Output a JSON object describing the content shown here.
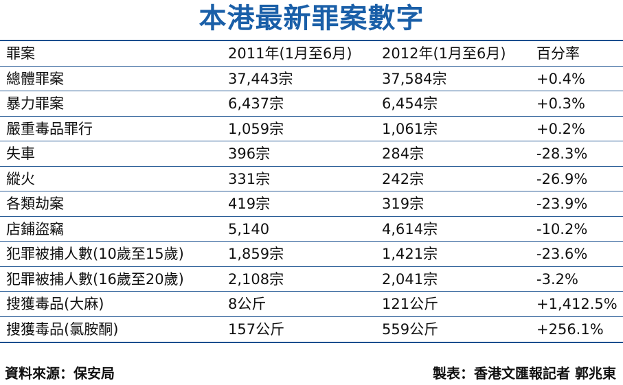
{
  "title": "本港最新罪案數字",
  "header": {
    "col1": "罪案",
    "col2": "2011年(1月至6月)",
    "col3": "2012年(1月至6月)",
    "col4": "百分率"
  },
  "rows": [
    {
      "crime": "總體罪案",
      "y2011": "37,443宗",
      "y2012": "37,584宗",
      "pct": "+0.4%"
    },
    {
      "crime": "暴力罪案",
      "y2011": "6,437宗",
      "y2012": "6,454宗",
      "pct": "+0.3%"
    },
    {
      "crime": "嚴重毒品罪行",
      "y2011": "1,059宗",
      "y2012": "1,061宗",
      "pct": "+0.2%"
    },
    {
      "crime": "失車",
      "y2011": "396宗",
      "y2012": "284宗",
      "pct": "-28.3%"
    },
    {
      "crime": "縱火",
      "y2011": "331宗",
      "y2012": "242宗",
      "pct": "-26.9%"
    },
    {
      "crime": "各類劫案",
      "y2011": "419宗",
      "y2012": "319宗",
      "pct": "-23.9%"
    },
    {
      "crime": "店鋪盜竊",
      "y2011": "5,140",
      "y2012": "4,614宗",
      "pct": "-10.2%"
    },
    {
      "crime": "犯罪被捕人數(10歲至15歲)",
      "y2011": "1,859宗",
      "y2012": "1,421宗",
      "pct": "-23.6%"
    },
    {
      "crime": "犯罪被捕人數(16歲至20歲)",
      "y2011": "2,108宗",
      "y2012": "2,041宗",
      "pct": "-3.2%"
    },
    {
      "crime": "搜獲毒品(大麻)",
      "y2011": "8公斤",
      "y2012": "121公斤",
      "pct": "+1,412.5%"
    },
    {
      "crime": "搜獲毒品(氯胺酮)",
      "y2011": "157公斤",
      "y2012": "559公斤",
      "pct": "+256.1%"
    }
  ],
  "footer": {
    "source": "資料來源：保安局",
    "credit": "製表：香港文匯報記者  郭兆東"
  },
  "colors": {
    "title": "#1a5fa8",
    "rule": "#2a5d97"
  }
}
